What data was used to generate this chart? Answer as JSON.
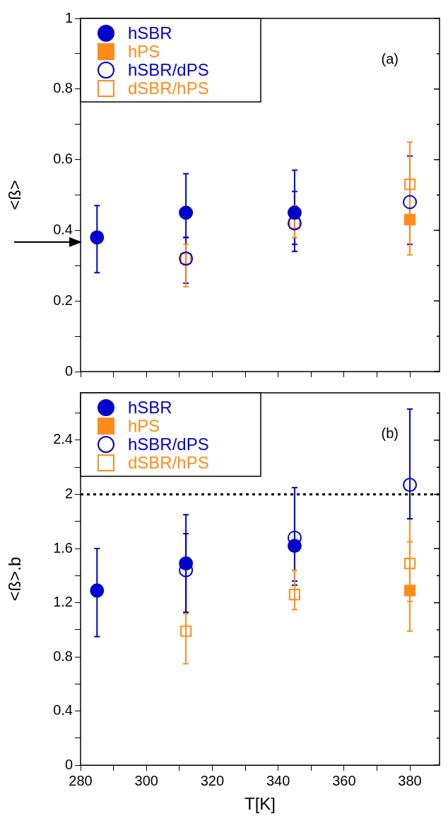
{
  "chart_data": [
    {
      "type": "scatter",
      "ylabel": "<ß>",
      "x": [
        285,
        312,
        345,
        380
      ],
      "series": [
        {
          "name": "hSBR",
          "color": "#0000cc",
          "marker": "circle",
          "values": [
            0.38,
            0.45,
            0.45,
            null
          ],
          "errors": [
            [
              0.28,
              0.47
            ],
            [
              0.38,
              0.56
            ],
            [
              0.34,
              0.57
            ],
            null
          ]
        },
        {
          "name": "hPS",
          "color": "#ff8c1a",
          "marker": "square",
          "values": [
            null,
            null,
            null,
            0.43
          ],
          "errors": [
            null,
            null,
            null,
            null
          ]
        },
        {
          "name": "hSBR/dPS",
          "color": "#0000cc",
          "marker": "circle",
          "values": [
            null,
            0.32,
            0.42,
            0.48
          ],
          "errors": [
            null,
            [
              0.25,
              0.38
            ],
            [
              0.36,
              0.51
            ],
            [
              0.36,
              0.61
            ]
          ]
        },
        {
          "name": "dSBR/hPS",
          "color": "#ff8c1a",
          "marker": "square",
          "values": [
            null,
            0.32,
            0.42,
            0.53
          ],
          "errors": [
            null,
            [
              0.24,
              0.36
            ],
            [
              0.38,
              0.47
            ],
            [
              0.33,
              0.65
            ]
          ]
        }
      ],
      "xlim": [
        280,
        389
      ],
      "xticks": [
        280,
        {
          "value": 290,
          "label": null
        },
        300,
        {
          "value": 310,
          "label": null
        },
        320,
        {
          "value": 330,
          "label": null
        },
        340,
        {
          "value": 350,
          "label": null
        },
        360,
        {
          "value": 370,
          "label": null
        },
        380
      ],
      "ylim": [
        0,
        1
      ],
      "yticks": [
        0,
        {
          "value": 0.1,
          "label": null
        },
        0.2,
        {
          "value": 0.3,
          "label": null
        },
        0.4,
        {
          "value": 0.5,
          "label": null
        },
        0.6,
        {
          "value": 0.7,
          "label": null
        },
        0.8,
        {
          "value": 0.9,
          "label": null
        },
        1
      ],
      "annotations": [
        "(a)"
      ],
      "legend": "top left",
      "tick_labels": "y",
      "grid": false
    },
    {
      "type": "scatter",
      "xlabel": "T[K]",
      "ylabel": "<ß>.b",
      "x": [
        285,
        312,
        345,
        380
      ],
      "series": [
        {
          "name": "hSBR",
          "color": "#0000cc",
          "marker": "circle",
          "values": [
            1.29,
            1.49,
            1.62,
            null
          ],
          "errors": [
            [
              0.95,
              1.6
            ],
            [
              1.13,
              1.85
            ],
            [
              1.33,
              2.05
            ],
            null
          ]
        },
        {
          "name": "hPS",
          "color": "#ff8c1a",
          "marker": "square",
          "values": [
            null,
            null,
            null,
            1.29
          ],
          "errors": [
            null,
            null,
            null,
            [
              0.99,
              1.82
            ]
          ]
        },
        {
          "name": "hSBR/dPS",
          "color": "#0000cc",
          "marker": "circle",
          "values": [
            null,
            1.44,
            1.68,
            2.07
          ],
          "errors": [
            null,
            [
              1.12,
              1.71
            ],
            [
              1.36,
              2.05
            ],
            [
              1.82,
              2.63
            ]
          ]
        },
        {
          "name": "dSBR/hPS",
          "color": "#ff8c1a",
          "marker": "square",
          "values": [
            null,
            0.99,
            1.26,
            1.49
          ],
          "errors": [
            null,
            [
              0.75,
              1.12
            ],
            [
              1.15,
              1.44
            ],
            [
              1.21,
              1.65
            ]
          ]
        }
      ],
      "xlim": [
        280,
        389
      ],
      "xticks": [
        280,
        {
          "value": 290,
          "label": null
        },
        300,
        {
          "value": 310,
          "label": null
        },
        320,
        {
          "value": 330,
          "label": null
        },
        340,
        {
          "value": 350,
          "label": null
        },
        360,
        {
          "value": 370,
          "label": null
        },
        380
      ],
      "ylim": [
        0,
        2.75
      ],
      "yticks": [
        0,
        {
          "value": 0.2,
          "label": null
        },
        0.4,
        {
          "value": 0.6,
          "label": null
        },
        0.8,
        {
          "value": 1.0,
          "label": null
        },
        1.2,
        {
          "value": 1.4,
          "label": null
        },
        1.6,
        {
          "value": 1.8,
          "label": null
        },
        2,
        {
          "value": 2.2,
          "label": null
        },
        2.4,
        {
          "value": 2.6,
          "label": null
        }
      ],
      "ref_lines": [
        {
          "axis": "y",
          "value": 2,
          "color": "#000000",
          "line_style": "dotted"
        }
      ],
      "annotations": [
        "(b)"
      ],
      "legend": "top left",
      "grid": false
    }
  ]
}
